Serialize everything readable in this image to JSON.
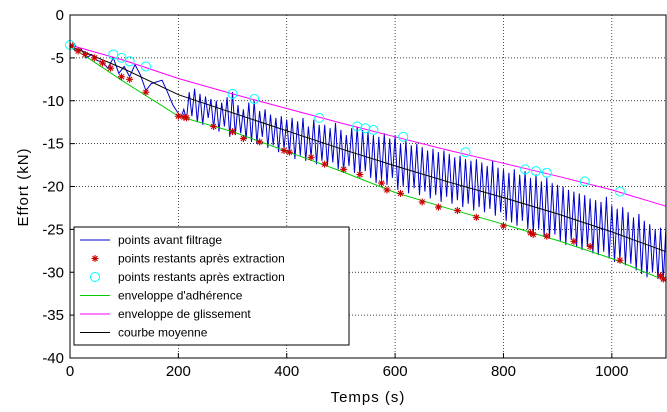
{
  "chart_data": {
    "type": "line",
    "title": "",
    "xlabel": "Temps (s)",
    "ylabel": "Effort (kN)",
    "xlim": [
      0,
      1100
    ],
    "ylim": [
      -40,
      0
    ],
    "xticks": [
      0,
      200,
      400,
      600,
      800,
      1000
    ],
    "yticks": [
      0,
      -5,
      -10,
      -15,
      -20,
      -25,
      -30,
      -35,
      -40
    ],
    "grid": true,
    "legend_position": "bottom-left",
    "series": [
      {
        "name": "points avant filtrage",
        "style": "line",
        "color": "#0000cc",
        "x": [
          0,
          10,
          20,
          30,
          40,
          50,
          60,
          70,
          80,
          90,
          100,
          110,
          120,
          130,
          140,
          150,
          160,
          170,
          180,
          190,
          200,
          205,
          210,
          215,
          220,
          225,
          230,
          235,
          240,
          245,
          250,
          255,
          260,
          265,
          270,
          275,
          280,
          285,
          290,
          295,
          300,
          305,
          310,
          315,
          320,
          325,
          330,
          335,
          340,
          345,
          350,
          355,
          360,
          365,
          370,
          375,
          380,
          385,
          390,
          395,
          400,
          405,
          410,
          415,
          420,
          425,
          430,
          435,
          440,
          445,
          450,
          455,
          460,
          465,
          470,
          475,
          480,
          485,
          490,
          495,
          500,
          505,
          510,
          515,
          520,
          525,
          530,
          535,
          540,
          545,
          550,
          555,
          560,
          565,
          570,
          575,
          580,
          585,
          590,
          595,
          600,
          605,
          610,
          615,
          620,
          625,
          630,
          635,
          640,
          645,
          650,
          655,
          660,
          665,
          670,
          675,
          680,
          685,
          690,
          695,
          700,
          705,
          710,
          715,
          720,
          725,
          730,
          735,
          740,
          745,
          750,
          755,
          760,
          765,
          770,
          775,
          780,
          785,
          790,
          795,
          800,
          805,
          810,
          815,
          820,
          825,
          830,
          835,
          840,
          845,
          850,
          855,
          860,
          865,
          870,
          875,
          880,
          885,
          890,
          895,
          900,
          905,
          910,
          915,
          920,
          925,
          930,
          935,
          940,
          945,
          950,
          955,
          960,
          965,
          970,
          975,
          980,
          985,
          990,
          995,
          1000,
          1005,
          1010,
          1015,
          1020,
          1025,
          1030,
          1035,
          1040,
          1045,
          1050,
          1055,
          1060,
          1065,
          1070,
          1075,
          1080,
          1085,
          1090,
          1095,
          1100
        ],
        "y": [
          -3.5,
          -4.2,
          -3.9,
          -5.0,
          -4.6,
          -5.3,
          -5.5,
          -6.2,
          -5.0,
          -6.8,
          -6.0,
          -7.2,
          -5.8,
          -7.0,
          -8.8,
          -8.0,
          -7.8,
          -7.6,
          -9.0,
          -10.5,
          -11.5,
          -11.9,
          -11.0,
          -12.2,
          -9.0,
          -11.8,
          -8.6,
          -12.5,
          -9.2,
          -12.8,
          -9.5,
          -12.0,
          -9.8,
          -13.2,
          -10.0,
          -13.6,
          -10.2,
          -13.0,
          -9.6,
          -14.2,
          -9.0,
          -14.0,
          -10.5,
          -13.8,
          -11.0,
          -14.5,
          -10.2,
          -14.8,
          -10.0,
          -15.0,
          -11.2,
          -14.2,
          -11.0,
          -15.5,
          -11.6,
          -15.2,
          -12.0,
          -16.0,
          -11.8,
          -15.6,
          -12.2,
          -16.2,
          -12.0,
          -16.8,
          -12.4,
          -16.4,
          -12.0,
          -17.0,
          -13.0,
          -16.6,
          -12.2,
          -17.4,
          -12.8,
          -17.0,
          -12.8,
          -17.6,
          -13.2,
          -17.2,
          -12.6,
          -18.0,
          -13.4,
          -18.2,
          -14.0,
          -17.6,
          -13.2,
          -18.4,
          -13.0,
          -18.8,
          -13.4,
          -18.2,
          -13.6,
          -19.0,
          -14.0,
          -19.6,
          -14.2,
          -19.2,
          -13.8,
          -19.8,
          -14.4,
          -19.0,
          -14.0,
          -20.4,
          -15.0,
          -20.0,
          -14.6,
          -20.8,
          -15.2,
          -20.2,
          -15.0,
          -21.0,
          -15.4,
          -20.6,
          -15.8,
          -21.4,
          -15.6,
          -21.0,
          -16.0,
          -21.8,
          -15.8,
          -21.2,
          -16.2,
          -22.0,
          -16.6,
          -21.6,
          -16.4,
          -22.4,
          -16.8,
          -22.0,
          -17.0,
          -22.8,
          -16.8,
          -22.4,
          -17.2,
          -23.0,
          -17.6,
          -22.6,
          -17.0,
          -23.4,
          -17.8,
          -23.0,
          -18.0,
          -24.0,
          -18.4,
          -24.2,
          -18.0,
          -24.6,
          -18.6,
          -24.0,
          -18.2,
          -25.0,
          -19.0,
          -25.4,
          -18.6,
          -25.0,
          -19.4,
          -25.8,
          -19.0,
          -26.0,
          -19.6,
          -25.6,
          -19.8,
          -26.4,
          -20.0,
          -26.8,
          -20.4,
          -26.2,
          -20.6,
          -27.0,
          -20.8,
          -27.4,
          -21.0,
          -27.0,
          -21.4,
          -27.8,
          -21.6,
          -28.0,
          -21.8,
          -27.6,
          -21.2,
          -28.4,
          -22.2,
          -28.8,
          -22.6,
          -28.6,
          -22.4,
          -29.2,
          -23.0,
          -29.0,
          -23.6,
          -29.8,
          -23.2,
          -30.2,
          -24.0,
          -30.6,
          -24.4,
          -30.0,
          -25.0,
          -30.8,
          -24.8,
          -31.0,
          -24.6
        ]
      },
      {
        "name": "points restants après extraction",
        "style": "star",
        "color": "#cc0000",
        "x": [
          5,
          15,
          28,
          45,
          60,
          75,
          95,
          110,
          140,
          200,
          210,
          215,
          265,
          300,
          320,
          350,
          395,
          405,
          445,
          470,
          505,
          535,
          575,
          585,
          610,
          650,
          680,
          715,
          750,
          800,
          850,
          855,
          880,
          930,
          960,
          1015,
          1090,
          1095
        ],
        "y": [
          -3.6,
          -4.2,
          -4.6,
          -5.0,
          -5.6,
          -6.2,
          -7.2,
          -7.5,
          -9.0,
          -11.8,
          -11.9,
          -12.0,
          -13.0,
          -13.6,
          -14.4,
          -14.8,
          -15.8,
          -16.0,
          -16.6,
          -17.4,
          -18.0,
          -18.6,
          -19.6,
          -20.4,
          -20.8,
          -21.8,
          -22.4,
          -22.8,
          -23.6,
          -24.6,
          -25.4,
          -25.6,
          -25.8,
          -26.4,
          -27.0,
          -28.6,
          -30.4,
          -30.8
        ]
      },
      {
        "name": "points restants après extraction",
        "style": "circle",
        "color": "#00ffff",
        "x": [
          0,
          80,
          95,
          110,
          140,
          300,
          340,
          460,
          530,
          545,
          560,
          615,
          730,
          840,
          860,
          880,
          950,
          1015
        ],
        "y": [
          -3.5,
          -4.6,
          -5.0,
          -5.4,
          -6.0,
          -9.2,
          -9.8,
          -12.0,
          -13.0,
          -13.2,
          -13.4,
          -14.2,
          -16.0,
          -18.0,
          -18.2,
          -18.4,
          -19.4,
          -20.6
        ]
      },
      {
        "name": "enveloppe d'adhérence",
        "style": "line",
        "color": "#00cc00",
        "x": [
          0,
          100,
          200,
          300,
          400,
          500,
          600,
          700,
          800,
          900,
          1000,
          1100
        ],
        "y": [
          -3.6,
          -7.8,
          -11.8,
          -13.6,
          -15.9,
          -18.2,
          -20.7,
          -22.6,
          -24.4,
          -26.3,
          -28.4,
          -31.0
        ]
      },
      {
        "name": "enveloppe de glissement",
        "style": "line",
        "color": "#ff00ff",
        "x": [
          0,
          100,
          200,
          300,
          400,
          500,
          600,
          700,
          800,
          900,
          1000,
          1100
        ],
        "y": [
          -3.5,
          -5.3,
          -7.4,
          -9.2,
          -10.9,
          -12.6,
          -14.2,
          -15.8,
          -17.3,
          -18.8,
          -20.4,
          -22.3
        ]
      },
      {
        "name": "courbe moyenne",
        "style": "line",
        "color": "#000000",
        "x": [
          0,
          100,
          200,
          300,
          400,
          500,
          600,
          700,
          800,
          900,
          1000,
          1100
        ],
        "y": [
          -3.6,
          -6.3,
          -9.3,
          -11.4,
          -13.5,
          -15.6,
          -17.6,
          -19.5,
          -21.3,
          -23.2,
          -25.3,
          -27.6
        ]
      }
    ]
  }
}
